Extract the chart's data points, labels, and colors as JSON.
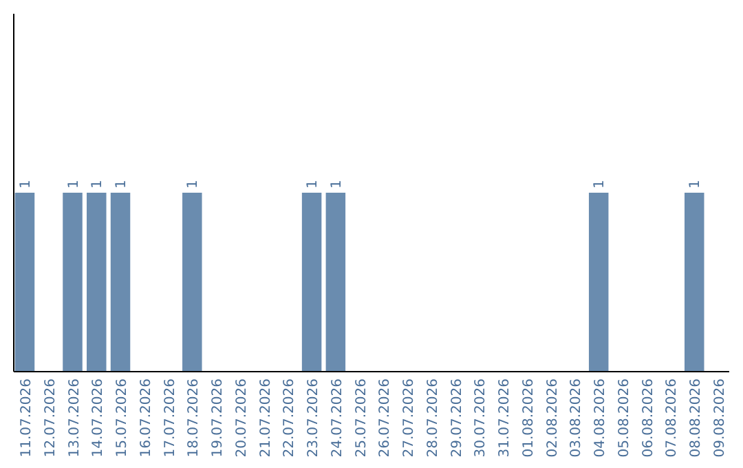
{
  "chart_data": {
    "type": "bar",
    "categories": [
      "11.07.2026",
      "12.07.2026",
      "13.07.2026",
      "14.07.2026",
      "15.07.2026",
      "16.07.2026",
      "17.07.2026",
      "18.07.2026",
      "19.07.2026",
      "20.07.2026",
      "21.07.2026",
      "22.07.2026",
      "23.07.2026",
      "24.07.2026",
      "25.07.2026",
      "26.07.2026",
      "27.07.2026",
      "28.07.2026",
      "29.07.2026",
      "30.07.2026",
      "31.07.2026",
      "01.08.2026",
      "02.08.2026",
      "03.08.2026",
      "04.08.2026",
      "05.08.2026",
      "06.08.2026",
      "07.08.2026",
      "08.08.2026",
      "09.08.2026"
    ],
    "values": [
      1,
      0,
      1,
      1,
      1,
      0,
      0,
      1,
      0,
      0,
      0,
      0,
      1,
      1,
      0,
      0,
      0,
      0,
      0,
      0,
      0,
      0,
      0,
      0,
      1,
      0,
      0,
      0,
      1,
      0
    ],
    "value_labels": [
      "1",
      null,
      "1",
      "1",
      "1",
      null,
      null,
      "1",
      null,
      null,
      null,
      null,
      "1",
      "1",
      null,
      null,
      null,
      null,
      null,
      null,
      null,
      null,
      null,
      null,
      "1",
      null,
      null,
      null,
      "1",
      null
    ],
    "color": "#6a8caf",
    "ylim": [
      0,
      2
    ],
    "tick_labels": "x"
  }
}
